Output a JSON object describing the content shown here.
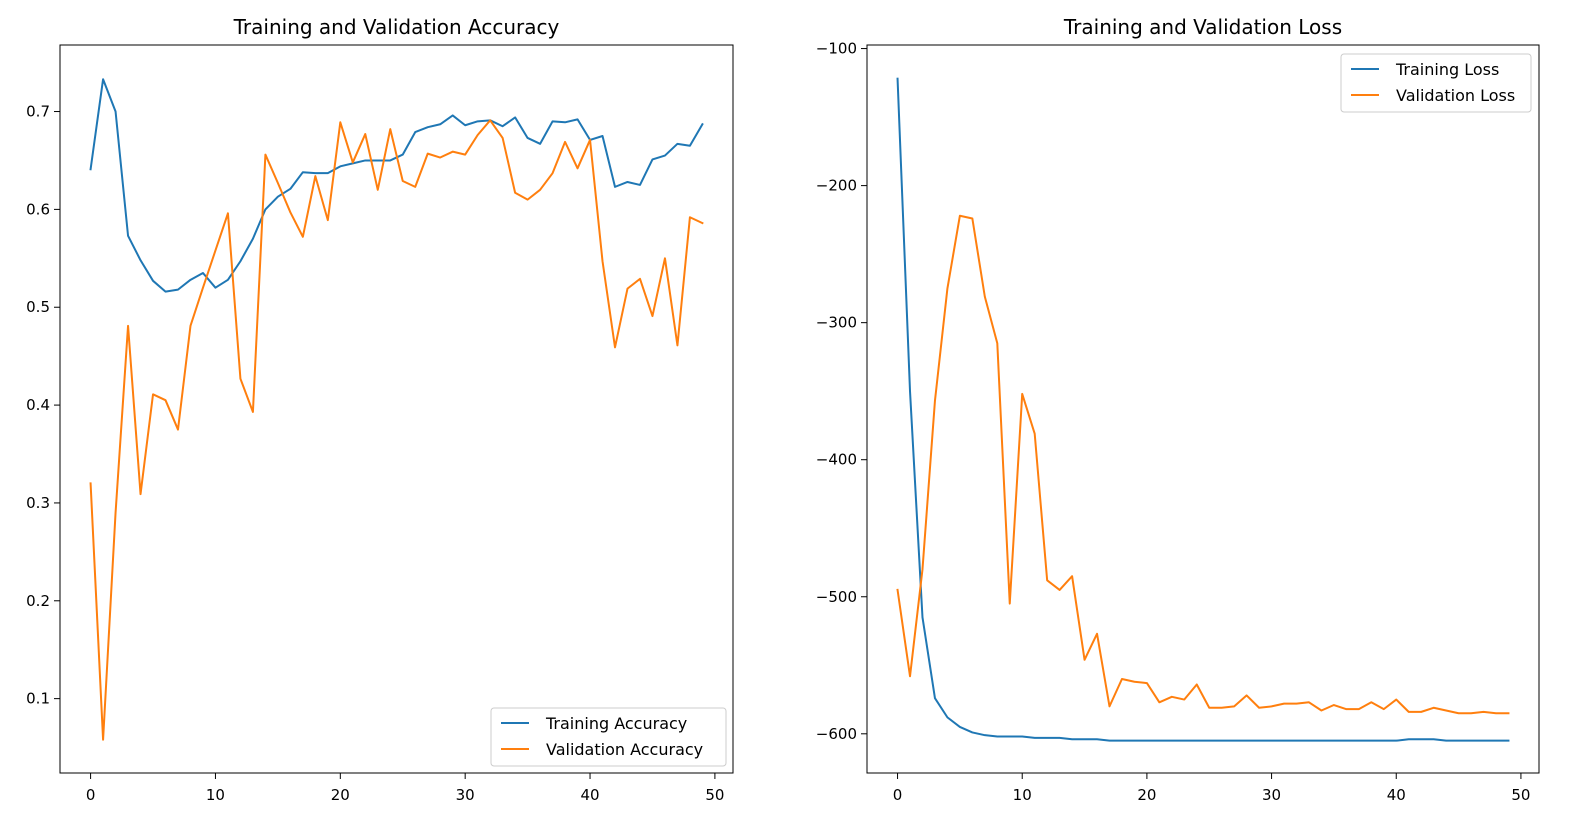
{
  "chart_data": [
    {
      "type": "line",
      "title": "Training and Validation Accuracy",
      "xlabel": "",
      "ylabel": "",
      "xlim": [
        -2.45,
        51.45
      ],
      "ylim": [
        0.024,
        0.768
      ],
      "xticks": [
        0,
        10,
        20,
        30,
        40,
        50
      ],
      "yticks": [
        0.1,
        0.2,
        0.3,
        0.4,
        0.5,
        0.6,
        0.7
      ],
      "grid": false,
      "legend": "lower-right",
      "x": [
        0,
        1,
        2,
        3,
        4,
        5,
        6,
        7,
        8,
        9,
        10,
        11,
        12,
        13,
        14,
        15,
        16,
        17,
        18,
        19,
        20,
        21,
        22,
        23,
        24,
        25,
        26,
        27,
        28,
        29,
        30,
        31,
        32,
        33,
        34,
        35,
        36,
        37,
        38,
        39,
        40,
        41,
        42,
        43,
        44,
        45,
        46,
        47,
        48,
        49
      ],
      "series": [
        {
          "name": "Training Accuracy",
          "color": "#1f77b4",
          "values": [
            0.641,
            0.733,
            0.7,
            0.573,
            0.548,
            0.527,
            0.516,
            0.518,
            0.528,
            0.535,
            0.52,
            0.528,
            0.547,
            0.57,
            0.6,
            0.613,
            0.621,
            0.638,
            0.637,
            0.637,
            0.644,
            0.647,
            0.65,
            0.65,
            0.65,
            0.656,
            0.679,
            0.684,
            0.687,
            0.696,
            0.686,
            0.69,
            0.691,
            0.685,
            0.694,
            0.673,
            0.667,
            0.69,
            0.689,
            0.692,
            0.671,
            0.675,
            0.623,
            0.628,
            0.625,
            0.651,
            0.655,
            0.667,
            0.665,
            0.687
          ]
        },
        {
          "name": "Validation Accuracy",
          "color": "#ff7f0e",
          "values": [
            0.32,
            0.058,
            0.29,
            0.481,
            0.309,
            0.411,
            0.405,
            0.375,
            0.481,
            0.52,
            0.558,
            0.596,
            0.427,
            0.393,
            0.656,
            0.627,
            0.597,
            0.572,
            0.634,
            0.589,
            0.689,
            0.648,
            0.677,
            0.62,
            0.682,
            0.629,
            0.623,
            0.657,
            0.653,
            0.659,
            0.656,
            0.676,
            0.691,
            0.673,
            0.617,
            0.61,
            0.62,
            0.637,
            0.669,
            0.642,
            0.671,
            0.547,
            0.459,
            0.519,
            0.529,
            0.491,
            0.55,
            0.461,
            0.592,
            0.586
          ]
        }
      ]
    },
    {
      "type": "line",
      "title": "Training and Validation Loss",
      "xlabel": "",
      "ylabel": "",
      "xlim": [
        -2.45,
        51.45
      ],
      "ylim": [
        -628.6,
        -97.4
      ],
      "xticks": [
        0,
        10,
        20,
        30,
        40,
        50
      ],
      "yticks": [
        -600,
        -500,
        -400,
        -300,
        -200,
        -100
      ],
      "ytick_labels": [
        "−600",
        "−500",
        "−400",
        "−300",
        "−200",
        "−100"
      ],
      "grid": false,
      "legend": "upper-right",
      "x": [
        0,
        1,
        2,
        3,
        4,
        5,
        6,
        7,
        8,
        9,
        10,
        11,
        12,
        13,
        14,
        15,
        16,
        17,
        18,
        19,
        20,
        21,
        22,
        23,
        24,
        25,
        26,
        27,
        28,
        29,
        30,
        31,
        32,
        33,
        34,
        35,
        36,
        37,
        38,
        39,
        40,
        41,
        42,
        43,
        44,
        45,
        46,
        47,
        48,
        49
      ],
      "series": [
        {
          "name": "Training Loss",
          "color": "#1f77b4",
          "values": [
            -122,
            -350,
            -515,
            -574,
            -588,
            -595,
            -599,
            -601,
            -602,
            -602,
            -602,
            -603,
            -603,
            -603,
            -604,
            -604,
            -604,
            -605,
            -605,
            -605,
            -605,
            -605,
            -605,
            -605,
            -605,
            -605,
            -605,
            -605,
            -605,
            -605,
            -605,
            -605,
            -605,
            -605,
            -605,
            -605,
            -605,
            -605,
            -605,
            -605,
            -605,
            -604,
            -604,
            -604,
            -605,
            -605,
            -605,
            -605,
            -605,
            -605
          ]
        },
        {
          "name": "Validation Loss",
          "color": "#ff7f0e",
          "values": [
            -495,
            -558,
            -480,
            -357,
            -275,
            -222,
            -224,
            -281,
            -315,
            -505,
            -352,
            -381,
            -488,
            -495,
            -485,
            -546,
            -527,
            -580,
            -560,
            -562,
            -563,
            -577,
            -573,
            -575,
            -564,
            -581,
            -581,
            -580,
            -572,
            -581,
            -580,
            -578,
            -578,
            -577,
            -583,
            -579,
            -582,
            -582,
            -577,
            -582,
            -575,
            -584,
            -584,
            -581,
            -583,
            -585,
            -585,
            -584,
            -585,
            -585
          ]
        }
      ]
    }
  ]
}
